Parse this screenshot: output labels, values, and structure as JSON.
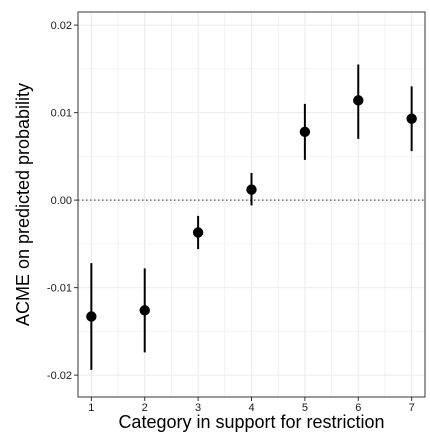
{
  "chart_data": {
    "type": "scatter",
    "title": "",
    "xlabel": "Category in support for restriction",
    "ylabel": "ACME on predicted probability",
    "x_ticks": [
      "1",
      "2",
      "3",
      "4",
      "5",
      "6",
      "7"
    ],
    "y_ticks": [
      "-0.02",
      "-0.01",
      "0.00",
      "0.01",
      "0.02"
    ],
    "y_tick_values": [
      -0.02,
      -0.01,
      0.0,
      0.01,
      0.02
    ],
    "xlim": [
      0.75,
      7.25
    ],
    "ylim": [
      -0.0225,
      0.0215
    ],
    "grid": true,
    "reference_line": {
      "y": 0.0,
      "style": "dotted"
    },
    "points": [
      {
        "x": 1,
        "y": -0.0133,
        "lower": -0.0194,
        "upper": -0.0072
      },
      {
        "x": 2,
        "y": -0.0126,
        "lower": -0.0174,
        "upper": -0.0078
      },
      {
        "x": 3,
        "y": -0.0037,
        "lower": -0.0056,
        "upper": -0.0018
      },
      {
        "x": 4,
        "y": 0.0012,
        "lower": -0.0006,
        "upper": 0.0031
      },
      {
        "x": 5,
        "y": 0.0078,
        "lower": 0.0046,
        "upper": 0.011
      },
      {
        "x": 6,
        "y": 0.0114,
        "lower": 0.007,
        "upper": 0.0155
      },
      {
        "x": 7,
        "y": 0.0093,
        "lower": 0.0056,
        "upper": 0.013
      }
    ]
  },
  "colors": {
    "point": "#000000",
    "grid": "#ebebeb",
    "panel_border": "#333333",
    "reference": "#555555"
  }
}
